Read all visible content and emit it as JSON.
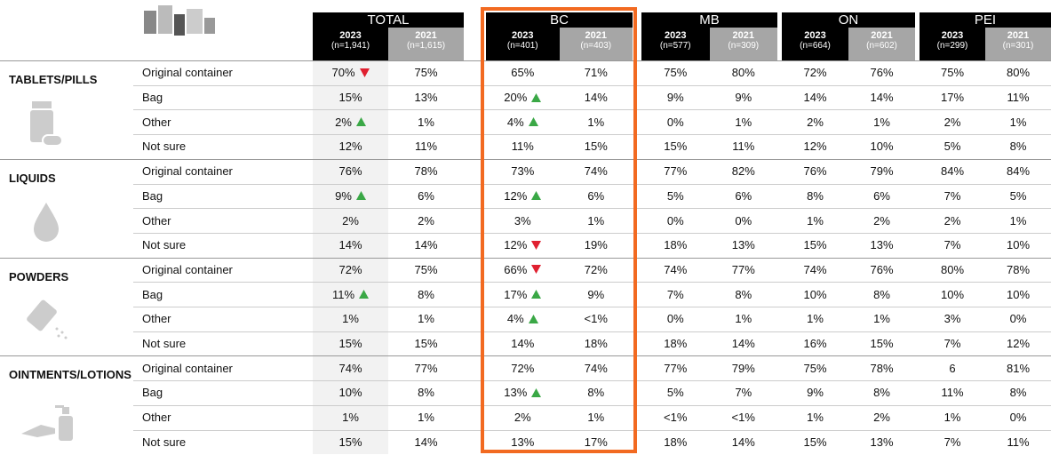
{
  "header": {
    "groups": [
      {
        "name": "TOTAL",
        "columns": [
          {
            "year": "2023",
            "n": "(n=1,941)"
          },
          {
            "year": "2021",
            "n": "(n=1,615)"
          }
        ]
      },
      {
        "name": "BC",
        "columns": [
          {
            "year": "2023",
            "n": "(n=401)"
          },
          {
            "year": "2021",
            "n": "(n=403)"
          }
        ]
      },
      {
        "name": "MB",
        "columns": [
          {
            "year": "2023",
            "n": "(n=577)"
          },
          {
            "year": "2021",
            "n": "(n=309)"
          }
        ]
      },
      {
        "name": "ON",
        "columns": [
          {
            "year": "2023",
            "n": "(n=664)"
          },
          {
            "year": "2021",
            "n": "(n=602)"
          }
        ]
      },
      {
        "name": "PEI",
        "columns": [
          {
            "year": "2023",
            "n": "(n=299)"
          },
          {
            "year": "2021",
            "n": "(n=301)"
          }
        ]
      }
    ]
  },
  "sections": [
    {
      "label": "TABLETS/PILLS",
      "rows": [
        {
          "label": "Original container",
          "values": [
            "70%",
            "75%",
            "65%",
            "71%",
            "75%",
            "80%",
            "72%",
            "76%",
            "75%",
            "80%"
          ]
        },
        {
          "label": "Bag",
          "values": [
            "15%",
            "13%",
            "20%",
            "14%",
            "9%",
            "9%",
            "14%",
            "14%",
            "17%",
            "11%"
          ]
        },
        {
          "label": "Other",
          "values": [
            "2%",
            "1%",
            "4%",
            "1%",
            "0%",
            "1%",
            "2%",
            "1%",
            "2%",
            "1%"
          ]
        },
        {
          "label": "Not sure",
          "values": [
            "12%",
            "11%",
            "11%",
            "15%",
            "15%",
            "11%",
            "12%",
            "10%",
            "5%",
            "8%"
          ]
        }
      ]
    },
    {
      "label": "LIQUIDS",
      "rows": [
        {
          "label": "Original container",
          "values": [
            "76%",
            "78%",
            "73%",
            "74%",
            "77%",
            "82%",
            "76%",
            "79%",
            "84%",
            "84%"
          ]
        },
        {
          "label": "Bag",
          "values": [
            "9%",
            "6%",
            "12%",
            "6%",
            "5%",
            "6%",
            "8%",
            "6%",
            "7%",
            "5%"
          ]
        },
        {
          "label": "Other",
          "values": [
            "2%",
            "2%",
            "3%",
            "1%",
            "0%",
            "0%",
            "1%",
            "2%",
            "2%",
            "1%"
          ]
        },
        {
          "label": "Not sure",
          "values": [
            "14%",
            "14%",
            "12%",
            "19%",
            "18%",
            "13%",
            "15%",
            "13%",
            "7%",
            "10%"
          ]
        }
      ]
    },
    {
      "label": "POWDERS",
      "rows": [
        {
          "label": "Original container",
          "values": [
            "72%",
            "75%",
            "66%",
            "72%",
            "74%",
            "77%",
            "74%",
            "76%",
            "80%",
            "78%"
          ]
        },
        {
          "label": "Bag",
          "values": [
            "11%",
            "8%",
            "17%",
            "9%",
            "7%",
            "8%",
            "10%",
            "8%",
            "10%",
            "10%"
          ]
        },
        {
          "label": "Other",
          "values": [
            "1%",
            "1%",
            "4%",
            "<1%",
            "0%",
            "1%",
            "1%",
            "1%",
            "3%",
            "0%"
          ]
        },
        {
          "label": "Not sure",
          "values": [
            "15%",
            "15%",
            "14%",
            "18%",
            "18%",
            "14%",
            "16%",
            "15%",
            "7%",
            "12%"
          ]
        }
      ]
    },
    {
      "label": "OINTMENTS/LOTIONS",
      "rows": [
        {
          "label": "Original container",
          "values": [
            "74%",
            "77%",
            "72%",
            "74%",
            "77%",
            "79%",
            "75%",
            "78%",
            "6",
            "81%"
          ]
        },
        {
          "label": "Bag",
          "values": [
            "10%",
            "8%",
            "13%",
            "8%",
            "5%",
            "7%",
            "9%",
            "8%",
            "11%",
            "8%"
          ]
        },
        {
          "label": "Other",
          "values": [
            "1%",
            "1%",
            "2%",
            "1%",
            "<1%",
            "<1%",
            "1%",
            "2%",
            "1%",
            "0%"
          ]
        },
        {
          "label": "Not sure",
          "values": [
            "15%",
            "14%",
            "13%",
            "17%",
            "18%",
            "14%",
            "15%",
            "13%",
            "7%",
            "11%"
          ]
        }
      ]
    }
  ]
}
